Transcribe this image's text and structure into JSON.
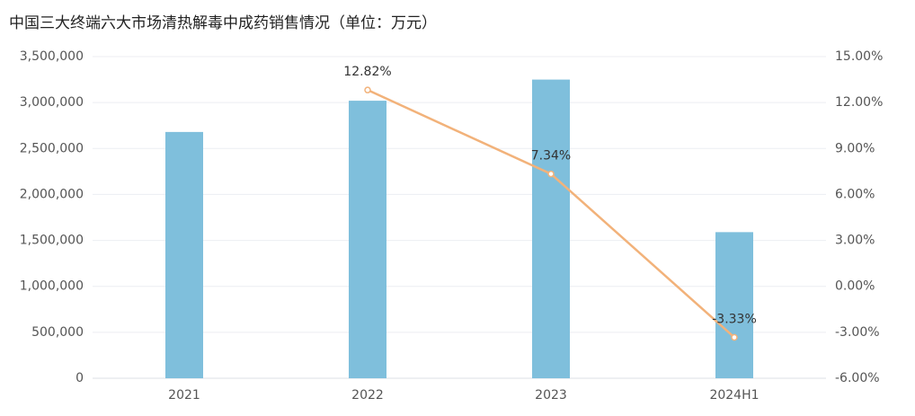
{
  "chart_data": {
    "type": "bar",
    "title": "中国三大终端六大市场清热解毒中成药销售情况（单位：万元）",
    "categories": [
      "2021",
      "2022",
      "2023",
      "2024H1"
    ],
    "series": [
      {
        "type": "bar",
        "color": "#7fbfdc",
        "values": [
          2680000,
          3020000,
          3250000,
          1590000
        ]
      },
      {
        "type": "line",
        "axis": "y2",
        "color": "#f2b27a",
        "values": [
          null,
          12.82,
          7.34,
          -3.33
        ],
        "value_labels": [
          null,
          "12.82%",
          "7.34%",
          "-3.33%"
        ]
      }
    ],
    "ylim": [
      0,
      3500000
    ],
    "yticks": [
      0,
      {
        "value": 500000,
        "label": "500,000"
      },
      {
        "value": 1000000,
        "label": "1,000,000"
      },
      {
        "value": 1500000,
        "label": "1,500,000"
      },
      {
        "value": 2000000,
        "label": "2,000,000"
      },
      {
        "value": 2500000,
        "label": "2,500,000"
      },
      {
        "value": 3000000,
        "label": "3,000,000"
      },
      {
        "value": 3500000,
        "label": "3,500,000"
      }
    ],
    "y2lim": [
      -6,
      15
    ],
    "y2ticks": [
      {
        "value": -6,
        "label": "-6.00%"
      },
      {
        "value": -3,
        "label": "-3.00%"
      },
      {
        "value": 0,
        "label": "0.00%"
      },
      {
        "value": 3,
        "label": "3.00%"
      },
      {
        "value": 6,
        "label": "6.00%"
      },
      {
        "value": 9,
        "label": "9.00%"
      },
      {
        "value": 12,
        "label": "12.00%"
      },
      {
        "value": 15,
        "label": "15.00%"
      }
    ],
    "grid": true
  }
}
